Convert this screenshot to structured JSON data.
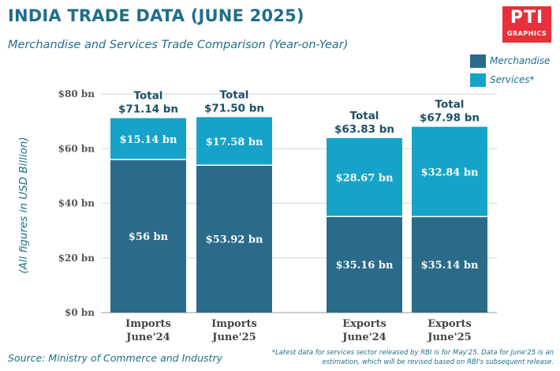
{
  "header": {
    "title": "INDIA TRADE DATA (JUNE 2025)",
    "subtitle": "Merchandise and Services Trade Comparison (Year-on-Year)"
  },
  "logo": {
    "big": "PTI",
    "small": "GRAPHICS"
  },
  "footer": {
    "source": "Source: Ministry of Commerce and Industry",
    "note": "*Latest data for services sector released by RBI is for May'25. Data for June'25 is an estimation, which will be revised based on RBI's subsequent release."
  },
  "colors": {
    "merchandise": "#2a6b8a",
    "services": "#16a3c9",
    "title": "#1f6e8c",
    "logo": "#e8303a"
  },
  "chart_data": {
    "type": "bar",
    "stacked": true,
    "title": "INDIA TRADE DATA (JUNE 2025)",
    "subtitle": "Merchandise and Services Trade Comparison (Year-on-Year)",
    "ylabel": "(All figures in USD Billion)",
    "ylim": [
      0,
      80
    ],
    "yticks": [
      0,
      20,
      40,
      60,
      80
    ],
    "ytick_labels": [
      "$0 bn",
      "$20 bn",
      "$40 bn",
      "$60 bn",
      "$80 bn"
    ],
    "grid": true,
    "legend_position": "top-right",
    "categories": [
      [
        "Imports",
        "June'24"
      ],
      [
        "Imports",
        "June'25"
      ],
      [
        "Exports",
        "June'24"
      ],
      [
        "Exports",
        "June'25"
      ]
    ],
    "series": [
      {
        "name": "Merchandise",
        "values": [
          56,
          53.92,
          35.16,
          35.14
        ],
        "labels": [
          "$56 bn",
          "$53.92 bn",
          "$35.16 bn",
          "$35.14 bn"
        ]
      },
      {
        "name": "Services*",
        "values": [
          15.14,
          17.58,
          28.67,
          32.84
        ],
        "labels": [
          "$15.14 bn",
          "$17.58 bn",
          "$28.67 bn",
          "$32.84 bn"
        ]
      }
    ],
    "totals": [
      [
        "Total",
        "$71.14 bn"
      ],
      [
        "Total",
        "$71.50 bn"
      ],
      [
        "Total",
        "$63.83 bn"
      ],
      [
        "Total",
        "$67.98 bn"
      ]
    ]
  }
}
